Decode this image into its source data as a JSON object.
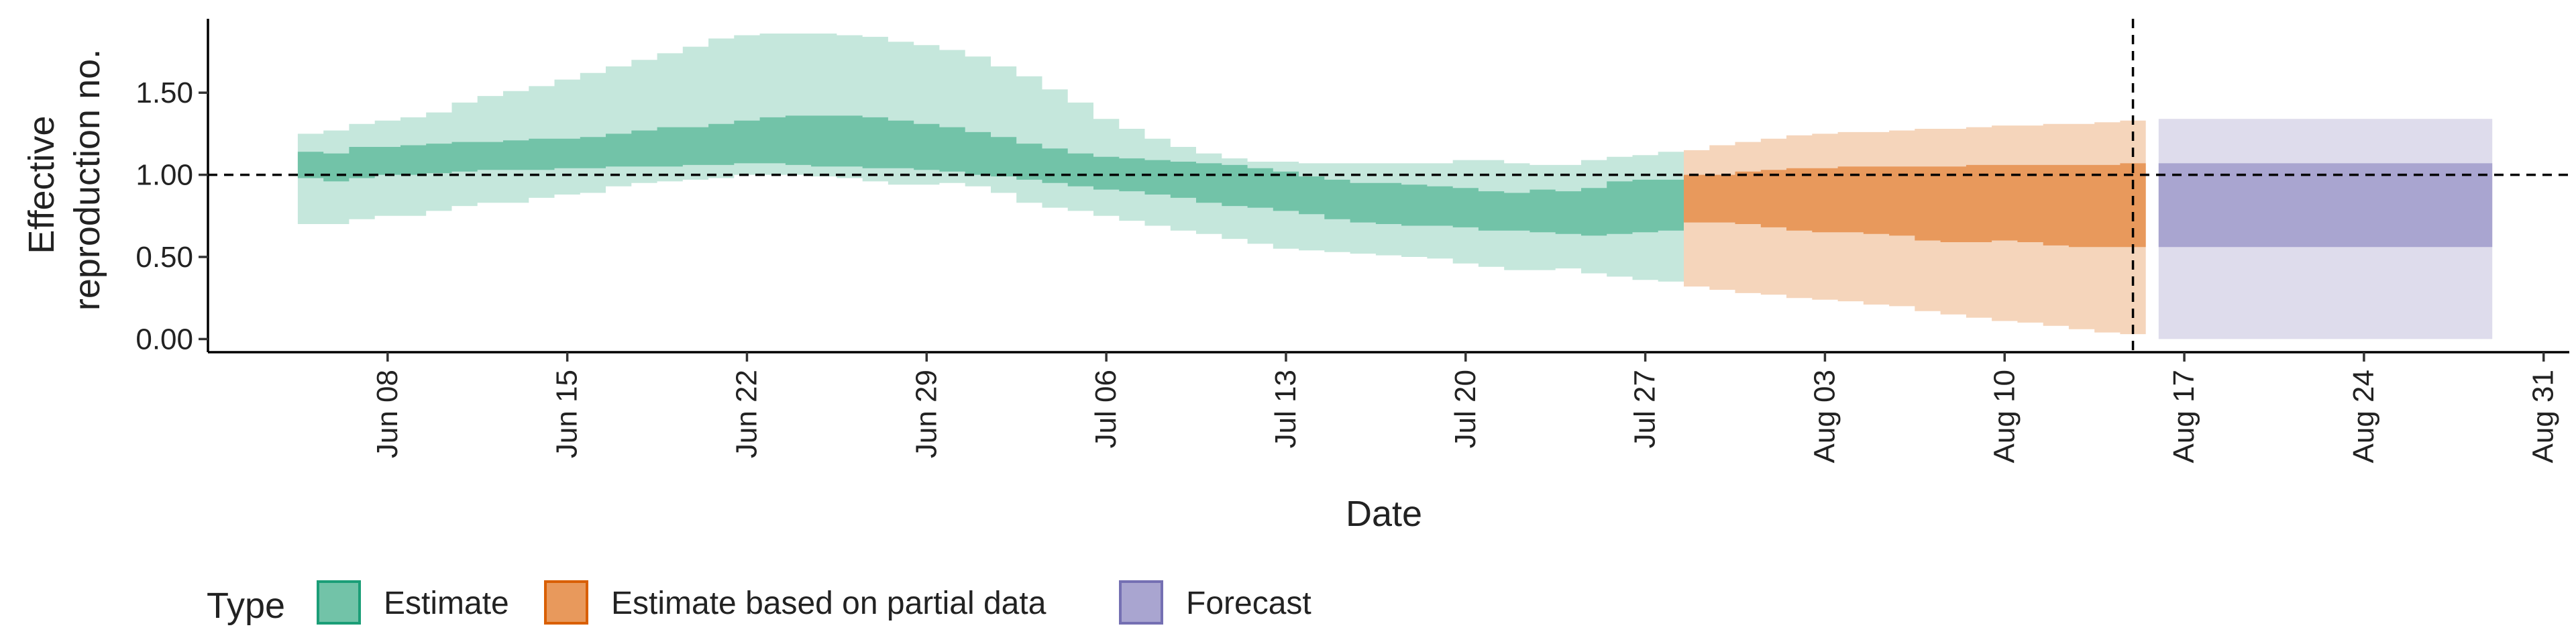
{
  "chart_data": {
    "type": "area",
    "xlabel": "Date",
    "ylabel_lines": [
      "Effective",
      "reproduction no."
    ],
    "x_ticks": [
      "Jun 08",
      "Jun 15",
      "Jun 22",
      "Jun 29",
      "Jul 06",
      "Jul 13",
      "Jul 20",
      "Jul 27",
      "Aug 03",
      "Aug 10",
      "Aug 17",
      "Aug 24",
      "Aug 31"
    ],
    "y_ticks": [
      "0.00",
      "0.50",
      "1.00",
      "1.50"
    ],
    "ylim": [
      -0.08,
      1.95
    ],
    "xlim": [
      "2020-06-01",
      "2020-09-01"
    ],
    "reference_line_y": 1.0,
    "reference_line_x": "2020-08-15",
    "legend": {
      "title": "Type",
      "position": "bottom",
      "entries": [
        "Estimate",
        "Estimate based on partial data",
        "Forecast"
      ]
    },
    "series": [
      {
        "name": "Estimate",
        "fill_inner": "#72c3a8",
        "fill_outer": "#c5e7dc",
        "stroke": "#1b9e77",
        "x": [
          "2020-06-05",
          "2020-06-06",
          "2020-06-07",
          "2020-06-08",
          "2020-06-09",
          "2020-06-10",
          "2020-06-11",
          "2020-06-12",
          "2020-06-13",
          "2020-06-14",
          "2020-06-15",
          "2020-06-16",
          "2020-06-17",
          "2020-06-18",
          "2020-06-19",
          "2020-06-20",
          "2020-06-21",
          "2020-06-22",
          "2020-06-23",
          "2020-06-24",
          "2020-06-25",
          "2020-06-26",
          "2020-06-27",
          "2020-06-28",
          "2020-06-29",
          "2020-06-30",
          "2020-07-01",
          "2020-07-02",
          "2020-07-03",
          "2020-07-04",
          "2020-07-05",
          "2020-07-06",
          "2020-07-07",
          "2020-07-08",
          "2020-07-09",
          "2020-07-10",
          "2020-07-11",
          "2020-07-12",
          "2020-07-13",
          "2020-07-14",
          "2020-07-15",
          "2020-07-16",
          "2020-07-17",
          "2020-07-18",
          "2020-07-19",
          "2020-07-20",
          "2020-07-21",
          "2020-07-22",
          "2020-07-23",
          "2020-07-24",
          "2020-07-25",
          "2020-07-26",
          "2020-07-27",
          "2020-07-28"
        ],
        "lower90": [
          0.7,
          0.7,
          0.73,
          0.75,
          0.75,
          0.78,
          0.81,
          0.83,
          0.83,
          0.86,
          0.88,
          0.89,
          0.93,
          0.95,
          0.96,
          0.97,
          0.98,
          1.0,
          1.0,
          1.0,
          0.99,
          0.98,
          0.96,
          0.94,
          0.94,
          0.95,
          0.93,
          0.89,
          0.83,
          0.8,
          0.78,
          0.75,
          0.72,
          0.69,
          0.66,
          0.64,
          0.61,
          0.58,
          0.55,
          0.54,
          0.53,
          0.52,
          0.51,
          0.5,
          0.49,
          0.46,
          0.44,
          0.42,
          0.42,
          0.43,
          0.4,
          0.38,
          0.36,
          0.35
        ],
        "upper90": [
          1.25,
          1.27,
          1.31,
          1.33,
          1.35,
          1.38,
          1.44,
          1.48,
          1.51,
          1.54,
          1.58,
          1.62,
          1.66,
          1.7,
          1.74,
          1.78,
          1.83,
          1.85,
          1.86,
          1.86,
          1.86,
          1.85,
          1.84,
          1.81,
          1.79,
          1.76,
          1.72,
          1.66,
          1.6,
          1.52,
          1.44,
          1.34,
          1.28,
          1.22,
          1.17,
          1.13,
          1.1,
          1.08,
          1.08,
          1.07,
          1.07,
          1.07,
          1.07,
          1.07,
          1.07,
          1.09,
          1.09,
          1.07,
          1.06,
          1.06,
          1.09,
          1.11,
          1.12,
          1.14
        ],
        "lower50": [
          0.98,
          0.96,
          0.98,
          1.0,
          1.0,
          1.01,
          1.02,
          1.03,
          1.03,
          1.03,
          1.04,
          1.04,
          1.05,
          1.05,
          1.05,
          1.06,
          1.06,
          1.07,
          1.07,
          1.06,
          1.05,
          1.05,
          1.04,
          1.04,
          1.03,
          1.02,
          1.0,
          0.99,
          0.97,
          0.95,
          0.93,
          0.91,
          0.9,
          0.88,
          0.86,
          0.83,
          0.81,
          0.8,
          0.78,
          0.76,
          0.73,
          0.71,
          0.7,
          0.69,
          0.69,
          0.68,
          0.66,
          0.66,
          0.65,
          0.64,
          0.63,
          0.64,
          0.65,
          0.66
        ],
        "upper50": [
          1.14,
          1.13,
          1.17,
          1.17,
          1.18,
          1.19,
          1.2,
          1.2,
          1.21,
          1.22,
          1.22,
          1.23,
          1.25,
          1.27,
          1.29,
          1.29,
          1.31,
          1.33,
          1.35,
          1.36,
          1.36,
          1.36,
          1.35,
          1.33,
          1.31,
          1.29,
          1.26,
          1.23,
          1.19,
          1.16,
          1.13,
          1.11,
          1.1,
          1.09,
          1.08,
          1.07,
          1.06,
          1.04,
          1.02,
          0.99,
          0.97,
          0.95,
          0.95,
          0.94,
          0.93,
          0.92,
          0.9,
          0.89,
          0.91,
          0.9,
          0.92,
          0.96,
          0.97,
          0.97
        ]
      },
      {
        "name": "Estimate based on partial data",
        "fill_inner": "#e8995c",
        "fill_outer": "#f5d5bb",
        "stroke": "#d95f02",
        "x": [
          "2020-07-29",
          "2020-07-30",
          "2020-07-31",
          "2020-08-01",
          "2020-08-02",
          "2020-08-03",
          "2020-08-04",
          "2020-08-05",
          "2020-08-06",
          "2020-08-07",
          "2020-08-08",
          "2020-08-09",
          "2020-08-10",
          "2020-08-11",
          "2020-08-12",
          "2020-08-13",
          "2020-08-14",
          "2020-08-15"
        ],
        "lower90": [
          0.32,
          0.3,
          0.28,
          0.27,
          0.25,
          0.24,
          0.23,
          0.21,
          0.2,
          0.17,
          0.15,
          0.13,
          0.11,
          0.1,
          0.08,
          0.06,
          0.04,
          0.03
        ],
        "upper90": [
          1.15,
          1.18,
          1.2,
          1.22,
          1.24,
          1.25,
          1.26,
          1.26,
          1.27,
          1.28,
          1.28,
          1.29,
          1.3,
          1.3,
          1.31,
          1.31,
          1.32,
          1.33
        ],
        "lower50": [
          0.71,
          0.71,
          0.7,
          0.68,
          0.66,
          0.65,
          0.65,
          0.64,
          0.63,
          0.6,
          0.59,
          0.59,
          0.6,
          0.59,
          0.57,
          0.56,
          0.56,
          0.56
        ],
        "upper50": [
          1.0,
          1.0,
          1.02,
          1.03,
          1.04,
          1.04,
          1.05,
          1.05,
          1.05,
          1.05,
          1.05,
          1.06,
          1.06,
          1.06,
          1.06,
          1.06,
          1.06,
          1.07
        ]
      },
      {
        "name": "Forecast",
        "fill_inner": "#a9a5d0",
        "fill_outer": "#dedcec",
        "stroke": "#7570b3",
        "x": [
          "2020-08-16",
          "2020-08-29"
        ],
        "lower90": [
          0.0,
          0.0
        ],
        "upper90": [
          1.34,
          1.34
        ],
        "lower50": [
          0.56,
          0.56
        ],
        "upper50": [
          1.07,
          1.07
        ]
      }
    ]
  }
}
